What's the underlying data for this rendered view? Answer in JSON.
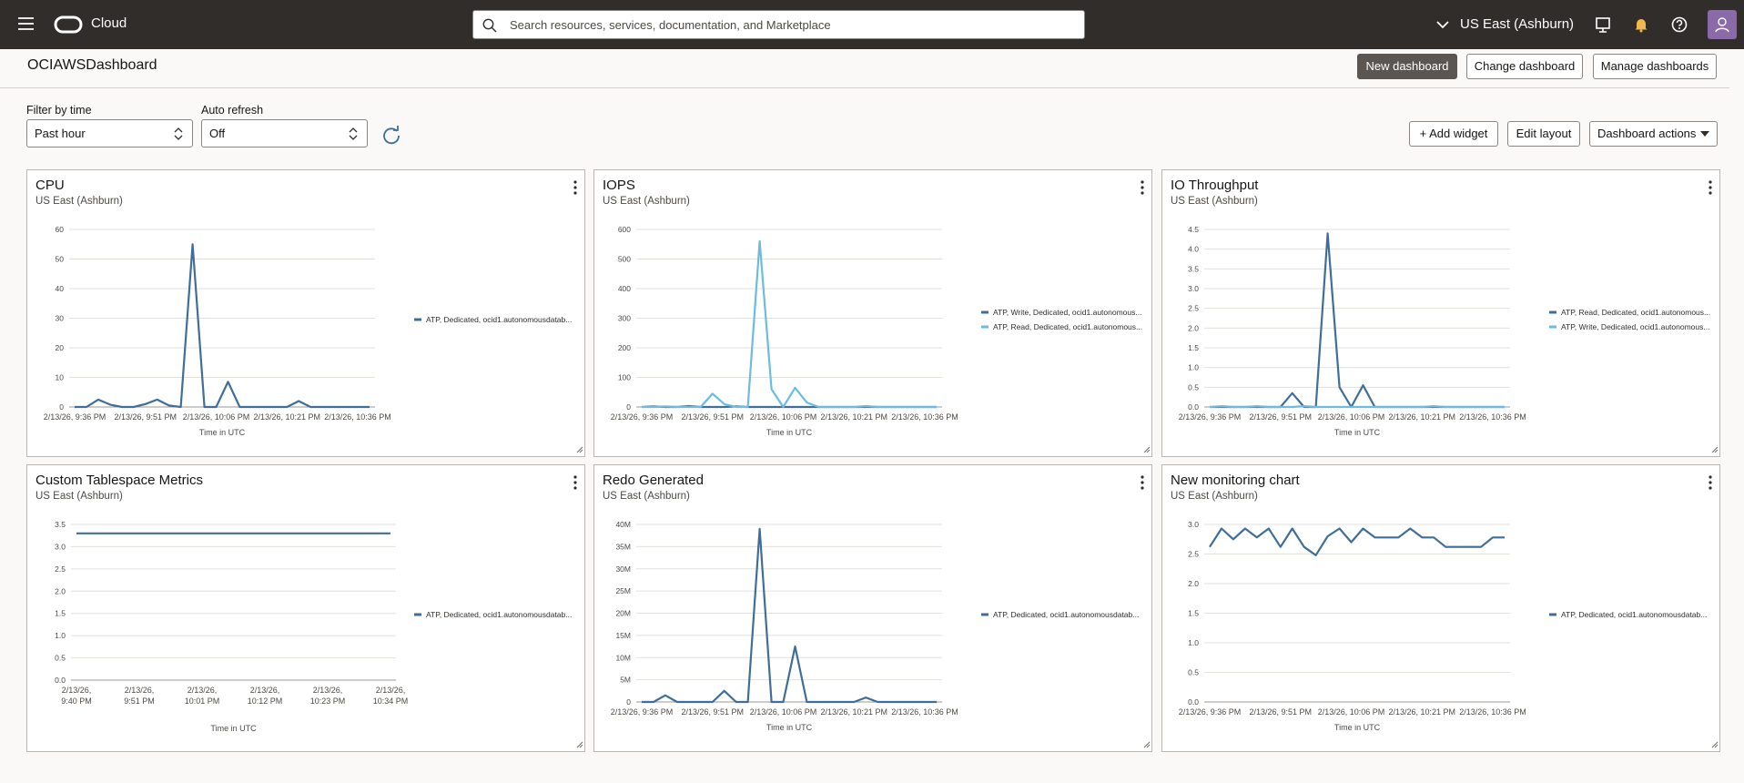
{
  "header": {
    "brand": "Cloud",
    "search_placeholder": "Search resources, services, documentation, and Marketplace",
    "region": "US East (Ashburn)"
  },
  "page": {
    "title": "OCIAWSDashboard",
    "buttons": [
      "New dashboard",
      "Change dashboard",
      "Manage dashboards"
    ]
  },
  "filters": {
    "time_label": "Filter by time",
    "time_value": "Past hour",
    "refresh_label": "Auto refresh",
    "refresh_value": "Off"
  },
  "actions": [
    "Add widget",
    "Edit layout",
    "Dashboard actions"
  ],
  "chart_data": [
    {
      "type": "line",
      "title": "CPU",
      "subtitle": "US East (Ashburn)",
      "x_label": "Time in UTC",
      "grid": true,
      "categories": [
        "2/13/26, 9:36 PM",
        null,
        null,
        null,
        null,
        null,
        "2/13/26, 9:51 PM",
        null,
        null,
        null,
        null,
        null,
        "2/13/26, 10:06 PM",
        null,
        null,
        null,
        null,
        null,
        "2/13/26, 10:21 PM",
        null,
        null,
        null,
        null,
        null,
        "2/13/26, 10:36 PM",
        null
      ],
      "series": [
        {
          "name": "ATP, Dedicated, ocid1.autonomousdatab...",
          "color": "#3f6e98",
          "values": [
            0,
            0,
            2.5,
            0.8,
            0,
            0,
            1,
            2.5,
            0.5,
            0,
            55,
            0,
            0,
            8.5,
            0,
            0,
            0,
            0,
            0,
            2,
            0,
            0,
            0,
            0,
            0,
            0
          ]
        }
      ],
      "ylim": [
        0,
        60
      ],
      "yticks": [
        0,
        10,
        20,
        30,
        40,
        50,
        60
      ]
    },
    {
      "type": "line",
      "title": "IOPS",
      "subtitle": "US East (Ashburn)",
      "x_label": "Time in UTC",
      "grid": true,
      "categories": [
        "2/13/26, 9:36 PM",
        null,
        null,
        null,
        null,
        null,
        "2/13/26, 9:51 PM",
        null,
        null,
        null,
        null,
        null,
        "2/13/26, 10:06 PM",
        null,
        null,
        null,
        null,
        null,
        "2/13/26, 10:21 PM",
        null,
        null,
        null,
        null,
        null,
        "2/13/26, 10:36 PM",
        null
      ],
      "series": [
        {
          "name": "ATP, Write, Dedicated, ocid1.autonomous...",
          "color": "#3f6e98",
          "values": [
            0,
            2,
            0,
            0,
            3,
            0,
            0,
            0,
            2,
            0,
            0,
            0,
            0,
            0,
            0,
            0,
            0,
            0,
            0,
            0,
            0,
            0,
            0,
            0,
            0,
            0
          ]
        },
        {
          "name": "ATP, Read, Dedicated, ocid1.autonomous...",
          "color": "#6bbcdf",
          "values": [
            0,
            0,
            2,
            0,
            0,
            0,
            45,
            10,
            0,
            0,
            560,
            60,
            0,
            65,
            15,
            0,
            0,
            0,
            0,
            3,
            0,
            0,
            0,
            0,
            0,
            0
          ]
        }
      ],
      "ylim": [
        0,
        600
      ],
      "yticks": [
        0,
        100,
        200,
        300,
        400,
        500,
        600
      ]
    },
    {
      "type": "line",
      "title": "IO Throughput",
      "subtitle": "US East (Ashburn)",
      "x_label": "Time in UTC",
      "grid": true,
      "categories": [
        "2/13/26, 9:36 PM",
        null,
        null,
        null,
        null,
        null,
        "2/13/26, 9:51 PM",
        null,
        null,
        null,
        null,
        null,
        "2/13/26, 10:06 PM",
        null,
        null,
        null,
        null,
        null,
        "2/13/26, 10:21 PM",
        null,
        null,
        null,
        null,
        null,
        "2/13/26, 10:36 PM",
        null
      ],
      "series": [
        {
          "name": "ATP, Read, Dedicated, ocid1.autonomous...",
          "color": "#3f6e98",
          "values": [
            0,
            0,
            0,
            0,
            0,
            0,
            0,
            0.35,
            0,
            0,
            4.4,
            0.5,
            0,
            0.55,
            0,
            0,
            0,
            0,
            0,
            0,
            0,
            0,
            0,
            0,
            0,
            0
          ]
        },
        {
          "name": "ATP, Write, Dedicated, ocid1.autonomous...",
          "color": "#6bbcdf",
          "values": [
            0,
            0.02,
            0,
            0,
            0.02,
            0,
            0,
            0,
            0.02,
            0,
            0,
            0,
            0,
            0,
            0,
            0,
            0,
            0,
            0,
            0.02,
            0,
            0,
            0,
            0,
            0,
            0
          ]
        }
      ],
      "ylim": [
        0,
        4.5
      ],
      "yticks": [
        {
          "value": 0,
          "label": "0.0"
        },
        0.5,
        {
          "value": 1,
          "label": "1.0"
        },
        1.5,
        {
          "value": 2,
          "label": "2.0"
        },
        2.5,
        {
          "value": 3,
          "label": "3.0"
        },
        3.5,
        {
          "value": 4,
          "label": "4.0"
        },
        4.5
      ]
    },
    {
      "type": "line",
      "title": "Custom Tablespace Metrics",
      "subtitle": "US East (Ashburn)",
      "x_label": "Time in UTC",
      "grid": true,
      "categories": [
        "2/13/26, 9:40 PM",
        null,
        "2/13/26, 9:51 PM",
        null,
        "2/13/26, 10:01 PM",
        null,
        "2/13/26, 10:12 PM",
        null,
        "2/13/26, 10:23 PM",
        null,
        "2/13/26, 10:34 PM"
      ],
      "series": [
        {
          "name": "ATP, Dedicated, ocid1.autonomousdatab...",
          "color": "#3f6e98",
          "values": [
            3.3,
            3.3,
            3.3,
            3.3,
            3.3,
            3.3,
            3.3,
            3.3,
            3.3,
            3.3,
            3.3
          ]
        }
      ],
      "ylim": [
        0,
        3.5
      ],
      "yticks": [
        {
          "value": 0,
          "label": "0.0"
        },
        0.5,
        {
          "value": 1,
          "label": "1.0"
        },
        1.5,
        {
          "value": 2,
          "label": "2.0"
        },
        2.5,
        {
          "value": 3,
          "label": "3.0"
        },
        3.5
      ]
    },
    {
      "type": "line",
      "title": "Redo Generated",
      "subtitle": "US East (Ashburn)",
      "x_label": "Time in UTC",
      "grid": true,
      "categories": [
        "2/13/26, 9:36 PM",
        null,
        null,
        null,
        null,
        null,
        "2/13/26, 9:51 PM",
        null,
        null,
        null,
        null,
        null,
        "2/13/26, 10:06 PM",
        null,
        null,
        null,
        null,
        null,
        "2/13/26, 10:21 PM",
        null,
        null,
        null,
        null,
        null,
        "2/13/26, 10:36 PM",
        null
      ],
      "series": [
        {
          "name": "ATP, Dedicated, ocid1.autonomousdatab...",
          "color": "#3f6e98",
          "values": [
            0,
            0,
            1500000,
            0,
            0,
            0,
            0,
            2500000,
            0,
            0,
            39000000,
            0,
            0,
            12500000,
            0,
            0,
            0,
            0,
            0,
            1000000,
            0,
            0,
            0,
            0,
            0,
            0
          ]
        }
      ],
      "ylim": [
        0,
        40000000
      ],
      "yticks": [
        0,
        {
          "value": 5000000,
          "label": "5M"
        },
        {
          "value": 10000000,
          "label": "10M"
        },
        {
          "value": 15000000,
          "label": "15M"
        },
        {
          "value": 20000000,
          "label": "20M"
        },
        {
          "value": 25000000,
          "label": "25M"
        },
        {
          "value": 30000000,
          "label": "30M"
        },
        {
          "value": 35000000,
          "label": "35M"
        },
        {
          "value": 40000000,
          "label": "40M"
        }
      ]
    },
    {
      "type": "line",
      "title": "New monitoring chart",
      "subtitle": "US East (Ashburn)",
      "x_label": "Time in UTC",
      "grid": true,
      "categories": [
        "2/13/26, 9:36 PM",
        null,
        null,
        null,
        null,
        null,
        "2/13/26, 9:51 PM",
        null,
        null,
        null,
        null,
        null,
        "2/13/26, 10:06 PM",
        null,
        null,
        null,
        null,
        null,
        "2/13/26, 10:21 PM",
        null,
        null,
        null,
        null,
        null,
        "2/13/26, 10:36 PM",
        null
      ],
      "series": [
        {
          "name": "ATP, Dedicated, ocid1.autonomousdatab...",
          "color": "#3f6e98",
          "values": [
            2.62,
            2.93,
            2.75,
            2.93,
            2.78,
            2.93,
            2.62,
            2.93,
            2.62,
            2.48,
            2.8,
            2.93,
            2.7,
            2.93,
            2.78,
            2.78,
            2.78,
            2.93,
            2.78,
            2.78,
            2.62,
            2.62,
            2.62,
            2.62,
            2.78,
            2.78
          ]
        }
      ],
      "ylim": [
        0,
        3.0
      ],
      "yticks": [
        {
          "value": 0,
          "label": "0.0"
        },
        0.5,
        {
          "value": 1,
          "label": "1.0"
        },
        1.5,
        {
          "value": 2,
          "label": "2.0"
        },
        2.5,
        {
          "value": 3,
          "label": "3.0"
        }
      ]
    }
  ]
}
